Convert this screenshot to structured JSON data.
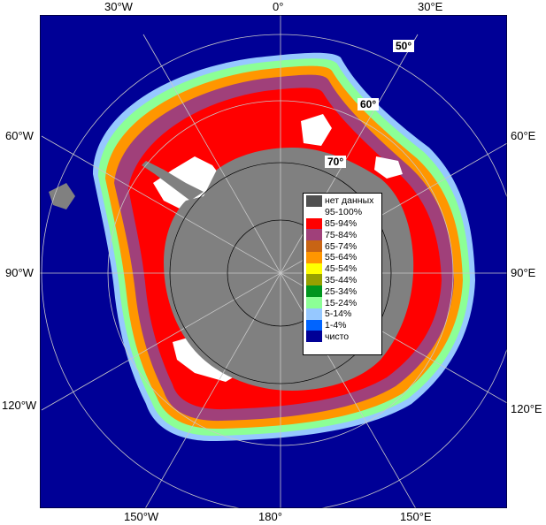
{
  "map": {
    "lon_labels": {
      "w30": "30°W",
      "zero": "0°",
      "e30": "30°E",
      "w60": "60°W",
      "e60": "60°E",
      "w90": "90°W",
      "e90": "90°E",
      "w120": "120°W",
      "e120": "120°E",
      "w150": "150°W",
      "lon180": "180°",
      "e150": "150°E"
    },
    "lat_labels": {
      "lat50": "50°",
      "lat60": "60°",
      "lat70": "70°"
    }
  },
  "legend": {
    "items": [
      {
        "label": "нет данных",
        "color": "#505050"
      },
      {
        "label": "95-100%",
        "color": "#ffffff"
      },
      {
        "label": "85-94%",
        "color": "#ff0000"
      },
      {
        "label": "75-84%",
        "color": "#a0407a"
      },
      {
        "label": "65-74%",
        "color": "#c86414"
      },
      {
        "label": "55-64%",
        "color": "#ff9600"
      },
      {
        "label": "45-54%",
        "color": "#ffff00"
      },
      {
        "label": "35-44%",
        "color": "#96a000"
      },
      {
        "label": "25-34%",
        "color": "#00961e"
      },
      {
        "label": "15-24%",
        "color": "#8cff96"
      },
      {
        "label": "5-14%",
        "color": "#96c8ff"
      },
      {
        "label": "1-4%",
        "color": "#0064ff"
      },
      {
        "label": "чисто",
        "color": "#000096"
      }
    ]
  },
  "colors": {
    "ocean": "#000096",
    "land": "#808080",
    "grid": "#c8c8c8"
  }
}
